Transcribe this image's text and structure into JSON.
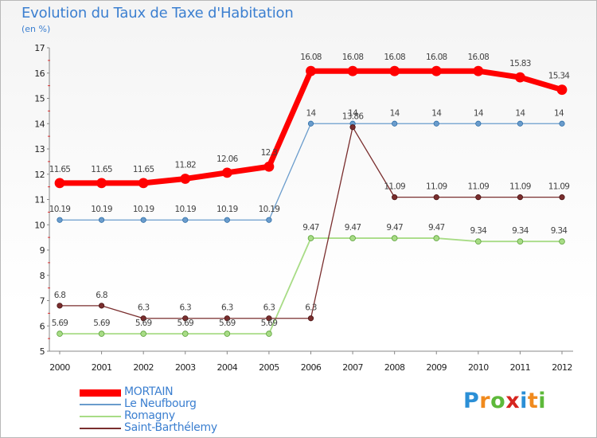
{
  "title": "Evolution du Taux de Taxe d'Habitation",
  "unit": "(en %)",
  "logo": {
    "chars": [
      "P",
      "r",
      "o",
      "x",
      "i",
      "t",
      "i"
    ],
    "colors": [
      "#2b8fd6",
      "#f08a1d",
      "#5db93a",
      "#d6251f",
      "#2b8fd6",
      "#f08a1d",
      "#5db93a"
    ]
  },
  "chart_data": {
    "type": "line",
    "title": "Evolution du Taux de Taxe d'Habitation",
    "ylabel": "(en %)",
    "xlabel": "",
    "x": [
      "2000",
      "2001",
      "2002",
      "2003",
      "2004",
      "2005",
      "2006",
      "2007",
      "2008",
      "2009",
      "2010",
      "2011",
      "2012"
    ],
    "ylim": [
      5,
      17
    ],
    "yticks": [
      "5",
      "6",
      "7",
      "8",
      "9",
      "10",
      "11",
      "12",
      "13",
      "14",
      "15",
      "16",
      "17"
    ],
    "grid": false,
    "legend": "bottom-left",
    "series": [
      {
        "name": "MORTAIN",
        "color": "#ff0000",
        "values": [
          11.65,
          11.65,
          11.65,
          11.82,
          12.06,
          12.3,
          16.08,
          16.08,
          16.08,
          16.08,
          16.08,
          15.83,
          15.34
        ],
        "labels": [
          "11.65",
          "11.65",
          "11.65",
          "11.82",
          "12.06",
          "12.3",
          "16.08",
          "16.08",
          "16.08",
          "16.08",
          "16.08",
          "15.83",
          "15.34"
        ]
      },
      {
        "name": "Le Neufbourg",
        "color": "#6a9ccc",
        "values": [
          10.19,
          10.19,
          10.19,
          10.19,
          10.19,
          10.19,
          14,
          14,
          14,
          14,
          14,
          14,
          14
        ],
        "labels": [
          "10.19",
          "10.19",
          "10.19",
          "10.19",
          "10.19",
          "10.19",
          "14",
          "14",
          "14",
          "14",
          "14",
          "14",
          "14"
        ]
      },
      {
        "name": "Romagny",
        "color": "#a8dc86",
        "values": [
          5.69,
          5.69,
          5.69,
          5.69,
          5.69,
          5.69,
          9.47,
          9.47,
          9.47,
          9.47,
          9.34,
          9.34,
          9.34
        ],
        "labels": [
          "5.69",
          "5.69",
          "5.69",
          "5.69",
          "5.69",
          "5.69",
          "9.47",
          "9.47",
          "9.47",
          "9.47",
          "9.34",
          "9.34",
          "9.34"
        ]
      },
      {
        "name": "Saint-Barthélemy",
        "color": "#7a2e2e",
        "values": [
          6.8,
          6.8,
          6.3,
          6.3,
          6.3,
          6.3,
          6.3,
          13.86,
          11.09,
          11.09,
          11.09,
          11.09,
          11.09
        ],
        "labels": [
          "6.8",
          "6.8",
          "6.3",
          "6.3",
          "6.3",
          "6.3",
          "6.3",
          "13.86",
          "11.09",
          "11.09",
          "11.09",
          "11.09",
          "11.09"
        ]
      }
    ]
  }
}
